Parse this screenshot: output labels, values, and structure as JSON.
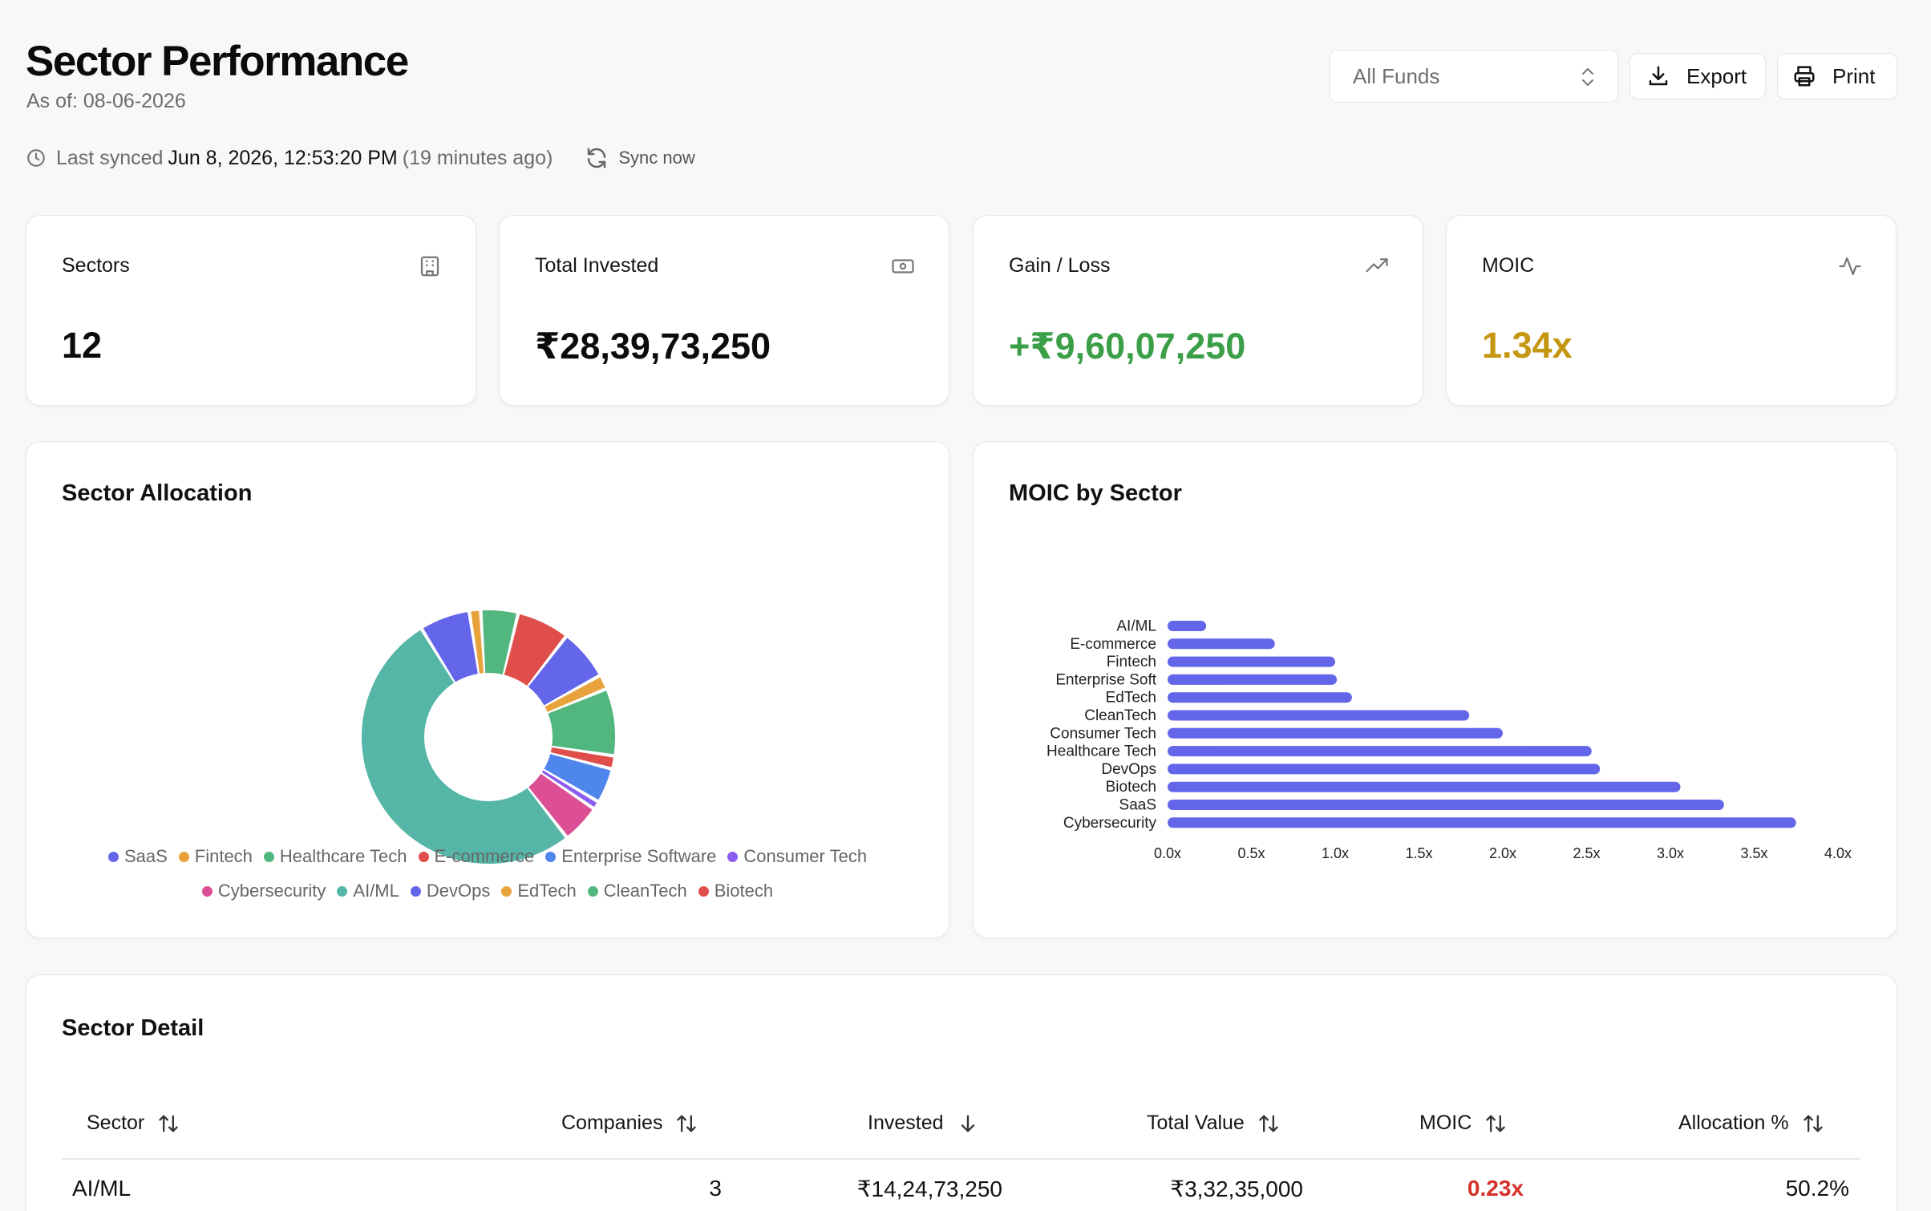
{
  "header": {
    "title": "Sector Performance",
    "as_of_label": "As of:",
    "as_of_value": "08-06-2026",
    "fund_select": "All Funds",
    "export_label": "Export",
    "print_label": "Print"
  },
  "sync": {
    "prefix": "Last synced",
    "time": "Jun 8, 2026, 12:53:20 PM",
    "ago": "(19 minutes ago)",
    "button": "Sync now"
  },
  "kpis": [
    {
      "label": "Sectors",
      "value": "12",
      "icon": "building-icon",
      "color": "#0c0c0c"
    },
    {
      "label": "Total Invested",
      "value": "₹28,39,73,250",
      "icon": "banknote-icon",
      "color": "#0c0c0c"
    },
    {
      "label": "Gain / Loss",
      "value": "+₹9,60,07,250",
      "icon": "trending-up-icon",
      "color": "#3a9f46"
    },
    {
      "label": "MOIC",
      "value": "1.34x",
      "icon": "activity-icon",
      "color": "#c5960f"
    }
  ],
  "allocation": {
    "title": "Sector Allocation",
    "legend_row1": [
      {
        "name": "SaaS",
        "color": "#6366e8"
      },
      {
        "name": "Fintech",
        "color": "#e8a23c"
      },
      {
        "name": "Healthcare Tech",
        "color": "#52b67f"
      },
      {
        "name": "E-commerce",
        "color": "#e04e4b"
      },
      {
        "name": "Enterprise Software",
        "color": "#4f86ec"
      },
      {
        "name": "Consumer Tech",
        "color": "#8b5cf0"
      }
    ],
    "legend_row2": [
      {
        "name": "Cybersecurity",
        "color": "#dc4f94"
      },
      {
        "name": "AI/ML",
        "color": "#55b6a8"
      },
      {
        "name": "DevOps",
        "color": "#6366e8"
      },
      {
        "name": "EdTech",
        "color": "#e8a23c"
      },
      {
        "name": "CleanTech",
        "color": "#52b67f"
      },
      {
        "name": "Biotech",
        "color": "#e04e4b"
      }
    ]
  },
  "chart_data": [
    {
      "type": "pie",
      "title": "Sector Allocation",
      "categories": [
        "AI/ML",
        "SaaS",
        "Fintech",
        "Healthcare Tech",
        "E-commerce",
        "DevOps",
        "EdTech",
        "CleanTech",
        "Biotech",
        "Enterprise Software",
        "Consumer Tech",
        "Cybersecurity"
      ],
      "values": [
        50.2,
        6.2,
        1.4,
        4.6,
        6.5,
        6.3,
        1.8,
        8.3,
        1.6,
        4.3,
        1.0,
        4.8
      ],
      "colors": [
        "#55b6a8",
        "#6366e8",
        "#e8a23c",
        "#52b67f",
        "#e04e4b",
        "#6366e8",
        "#e8a23c",
        "#52b67f",
        "#e04e4b",
        "#4f86ec",
        "#8b5cf0",
        "#dc4f94"
      ],
      "donut": true
    },
    {
      "type": "bar",
      "orientation": "horizontal",
      "title": "MOIC by Sector",
      "categories": [
        "AI/ML",
        "E-commerce",
        "Fintech",
        "Enterprise Soft",
        "EdTech",
        "CleanTech",
        "Consumer Tech",
        "Healthcare Tech",
        "DevOps",
        "Biotech",
        "SaaS",
        "Cybersecurity"
      ],
      "values": [
        0.23,
        0.64,
        1.0,
        1.01,
        1.1,
        1.8,
        2.0,
        2.53,
        2.58,
        3.06,
        3.32,
        3.75
      ],
      "xlim": [
        0,
        4.0
      ],
      "xticks": [
        "0.0x",
        "0.5x",
        "1.0x",
        "1.5x",
        "2.0x",
        "2.5x",
        "3.0x",
        "3.5x",
        "4.0x"
      ],
      "color": "#6366e8"
    }
  ],
  "moic_panel": {
    "title": "MOIC by Sector"
  },
  "table": {
    "title": "Sector Detail",
    "headers": [
      "Sector",
      "Companies",
      "Invested",
      "Total Value",
      "MOIC",
      "Allocation %"
    ],
    "rows": [
      {
        "sector": "AI/ML",
        "companies": "3",
        "invested": "₹14,24,73,250",
        "total_value": "₹3,32,35,000",
        "moic": "0.23x",
        "moic_color": "#d6302b",
        "allocation": "50.2%"
      }
    ]
  }
}
